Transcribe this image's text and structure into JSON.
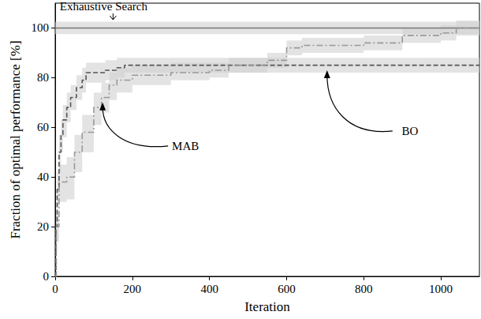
{
  "chart_data": {
    "type": "line",
    "x_label": "Iteration",
    "y_label": "Fraction of optimal performance [%]",
    "xlim": [
      0,
      1100
    ],
    "ylim": [
      0,
      110
    ],
    "xticks": [
      0,
      200,
      400,
      600,
      800,
      1000
    ],
    "yticks": [
      0,
      20,
      40,
      60,
      80,
      100
    ],
    "grid": false,
    "series": [
      {
        "name": "Exhaustive Search",
        "color": "#777777",
        "line_style": "solid",
        "x": [
          0,
          1100
        ],
        "values": [
          100,
          100
        ],
        "lower": [
          97.5,
          97.5
        ],
        "upper": [
          102.5,
          102.5
        ]
      },
      {
        "name": "BO",
        "color": "#555555",
        "line_style": "dashed",
        "x": [
          0,
          2,
          5,
          10,
          15,
          20,
          30,
          40,
          55,
          70,
          80,
          130,
          160,
          180,
          1100
        ],
        "values": [
          0,
          20,
          35,
          50,
          57,
          63,
          68,
          72,
          76,
          79,
          82,
          83,
          84,
          85,
          85
        ],
        "lower": [
          0,
          15,
          28,
          42,
          50,
          56,
          62,
          67,
          71,
          74,
          78,
          79,
          80,
          82,
          82
        ],
        "upper": [
          0,
          25,
          42,
          57,
          63,
          69,
          74,
          77,
          81,
          84,
          86,
          87,
          88,
          88,
          88
        ]
      },
      {
        "name": "MAB",
        "color": "#999999",
        "line_style": "dashdot",
        "x": [
          0,
          3,
          10,
          30,
          50,
          70,
          100,
          120,
          140,
          160,
          200,
          300,
          400,
          450,
          550,
          600,
          640,
          800,
          900,
          1000,
          1040,
          1100
        ],
        "values": [
          0,
          20,
          38,
          40,
          50,
          58,
          68,
          72,
          77,
          79,
          81,
          82,
          83,
          85,
          87,
          92,
          93,
          94,
          97,
          98,
          100,
          100
        ],
        "lower": [
          0,
          14,
          30,
          31,
          42,
          50,
          61,
          66,
          71,
          74,
          77,
          79,
          80,
          82,
          84,
          89,
          90,
          91,
          94,
          95,
          97,
          97
        ],
        "upper": [
          0,
          26,
          45,
          48,
          57,
          65,
          74,
          78,
          82,
          84,
          85,
          86,
          86,
          88,
          90,
          95,
          96,
          97,
          100,
          101,
          103,
          103
        ]
      }
    ],
    "annotations": [
      {
        "text": "Exhaustive Search",
        "x": 150,
        "y": 103
      },
      {
        "text": "MAB",
        "x": 123,
        "y": 70
      },
      {
        "text": "BO",
        "x": 705,
        "y": 83
      }
    ]
  }
}
